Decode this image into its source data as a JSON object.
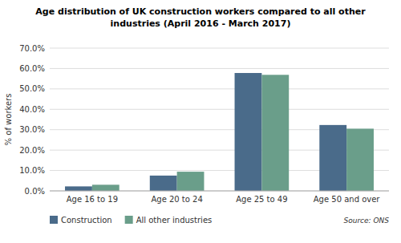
{
  "chart_data": {
    "type": "bar",
    "title": "Age distribution of UK construction workers compared to all other",
    "subtitle": "industries (April 2016 - March 2017)",
    "categories": [
      "Age 16 to 19",
      "Age 20 to 24",
      "Age 25 to 49",
      "Age 50 and over"
    ],
    "series": [
      {
        "name": "Construction",
        "color": "#4a6b8a",
        "values": [
          0.022,
          0.075,
          0.578,
          0.323
        ]
      },
      {
        "name": "All other industries",
        "color": "#6a9e8a",
        "values": [
          0.03,
          0.094,
          0.569,
          0.305
        ]
      }
    ],
    "y_label": "% of workers",
    "ylim": [
      0,
      0.7
    ],
    "yticks": [
      {
        "value": 0.0,
        "label": "0.0%"
      },
      {
        "value": 0.1,
        "label": "10.0%"
      },
      {
        "value": 0.2,
        "label": "20.0%"
      },
      {
        "value": 0.3,
        "label": "30.0%"
      },
      {
        "value": 0.4,
        "label": "40.0%"
      },
      {
        "value": 0.5,
        "label": "50.0%"
      },
      {
        "value": 0.6,
        "label": "60.0%"
      },
      {
        "value": 0.7,
        "label": "70.0%"
      }
    ],
    "grid": true,
    "legend": "bottom",
    "annotations": [
      "Source: ONS"
    ]
  }
}
